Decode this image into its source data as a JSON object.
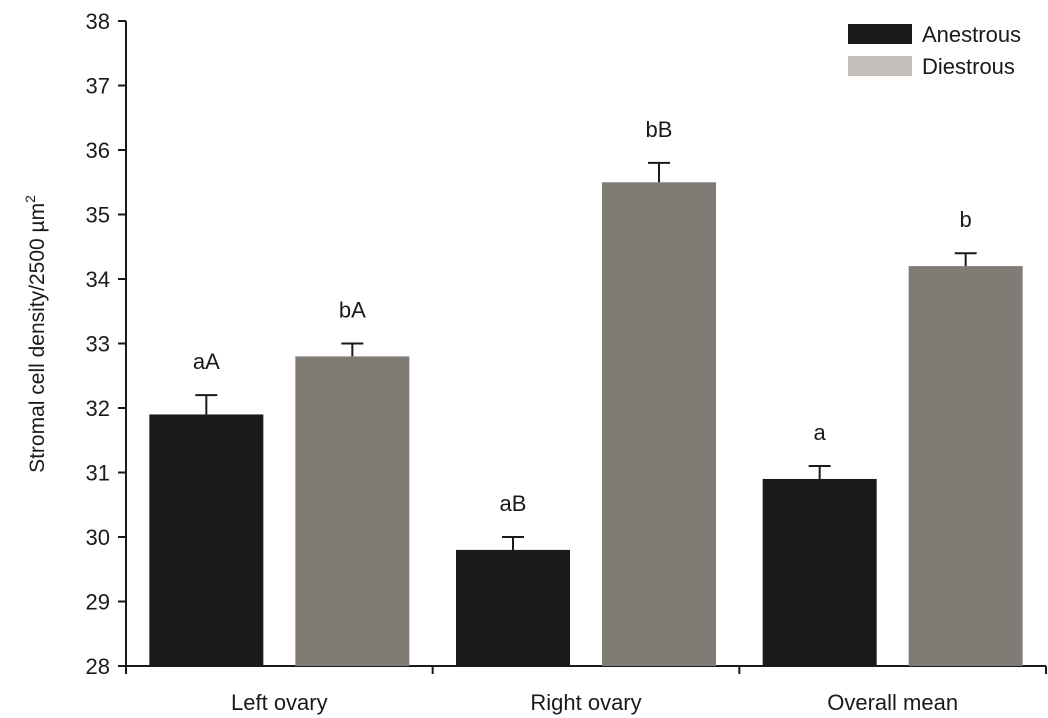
{
  "chart_data": {
    "type": "bar",
    "categories": [
      "Left ovary",
      "Right ovary",
      "Overall mean"
    ],
    "series": [
      {
        "name": "Anestrous",
        "color": "#1a1b18",
        "values": [
          31.9,
          29.8,
          30.9
        ],
        "errors": [
          0.3,
          0.2,
          0.2
        ],
        "labels": [
          "aA",
          "aB",
          "a"
        ]
      },
      {
        "name": "Diestrous",
        "color": "#817b76",
        "legend_color": "#c4bfbb",
        "values": [
          32.8,
          35.5,
          34.2
        ],
        "errors": [
          0.2,
          0.3,
          0.2
        ],
        "labels": [
          "bA",
          "bB",
          "b"
        ]
      }
    ],
    "ylabel": "Stromal cell density/2500 µm",
    "ylabel_superscript": "2",
    "ylim": [
      28,
      38
    ],
    "yticks": [
      28,
      29,
      30,
      31,
      32,
      33,
      34,
      35,
      36,
      37,
      38
    ],
    "grid": false,
    "legend_position": "top-right"
  }
}
